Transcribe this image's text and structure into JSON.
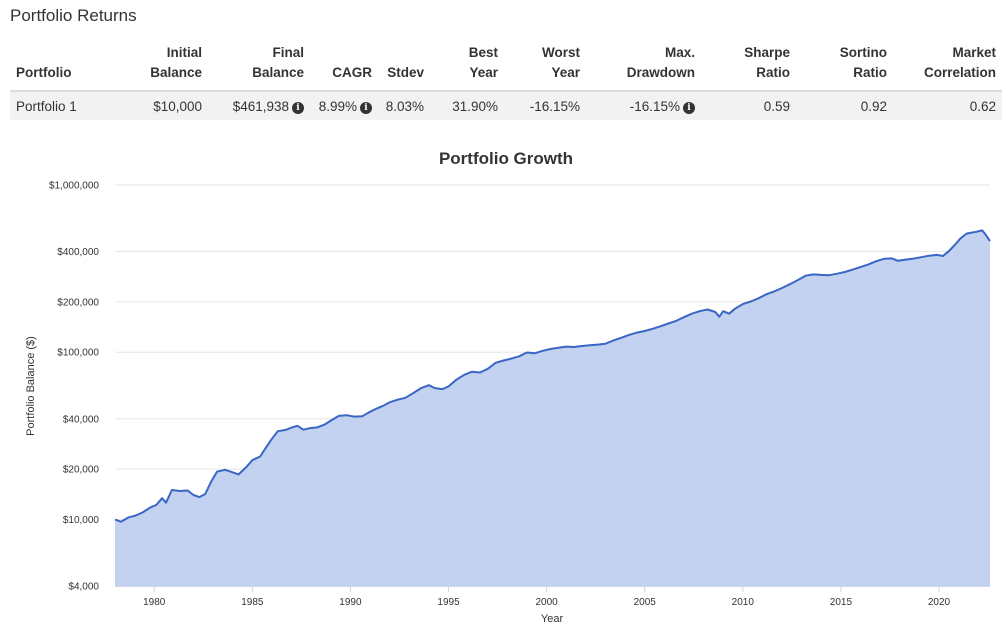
{
  "header": {
    "title": "Portfolio Returns"
  },
  "table": {
    "columns": [
      {
        "line1": "",
        "line2": "Portfolio"
      },
      {
        "line1": "Initial",
        "line2": "Balance"
      },
      {
        "line1": "Final",
        "line2": "Balance"
      },
      {
        "line1": "",
        "line2": "CAGR"
      },
      {
        "line1": "",
        "line2": "Stdev"
      },
      {
        "line1": "Best",
        "line2": "Year"
      },
      {
        "line1": "Worst",
        "line2": "Year"
      },
      {
        "line1": "Max.",
        "line2": "Drawdown"
      },
      {
        "line1": "Sharpe",
        "line2": "Ratio"
      },
      {
        "line1": "Sortino",
        "line2": "Ratio"
      },
      {
        "line1": "Market",
        "line2": "Correlation"
      }
    ],
    "row": {
      "portfolio": "Portfolio 1",
      "initial_balance": "$10,000",
      "final_balance": "$461,938",
      "cagr": "8.99%",
      "stdev": "8.03%",
      "best_year": "31.90%",
      "worst_year": "-16.15%",
      "max_drawdown": "-16.15%",
      "sharpe": "0.59",
      "sortino": "0.92",
      "market_correlation": "0.62"
    },
    "info_icon": "i"
  },
  "chart_data": {
    "type": "area",
    "title": "Portfolio Growth",
    "xlabel": "Year",
    "ylabel": "Portfolio Balance ($)",
    "yscale": "log",
    "ylim": [
      4000,
      1000000
    ],
    "xlim": [
      1978,
      2022.6
    ],
    "yticks": [
      {
        "value": 1000000,
        "label": "$1,000,000"
      },
      {
        "value": 400000,
        "label": "$400,000"
      },
      {
        "value": 200000,
        "label": "$200,000"
      },
      {
        "value": 100000,
        "label": "$100,000"
      },
      {
        "value": 40000,
        "label": "$40,000"
      },
      {
        "value": 20000,
        "label": "$20,000"
      },
      {
        "value": 10000,
        "label": "$10,000"
      },
      {
        "value": 4000,
        "label": "$4,000"
      }
    ],
    "xticks": [
      1980,
      1985,
      1990,
      1995,
      2000,
      2005,
      2010,
      2015,
      2020
    ],
    "colors": {
      "line": "#3a66c4",
      "fill": "#c2d2f0",
      "grid": "#e6e6e6"
    },
    "series": [
      {
        "name": "Portfolio 1",
        "points": [
          [
            1978.0,
            10000
          ],
          [
            1978.3,
            9700
          ],
          [
            1978.7,
            10300
          ],
          [
            1979.0,
            10500
          ],
          [
            1979.4,
            11000
          ],
          [
            1979.8,
            11800
          ],
          [
            1980.1,
            12200
          ],
          [
            1980.4,
            13400
          ],
          [
            1980.6,
            12600
          ],
          [
            1980.9,
            15000
          ],
          [
            1981.3,
            14800
          ],
          [
            1981.7,
            14900
          ],
          [
            1982.0,
            14000
          ],
          [
            1982.3,
            13600
          ],
          [
            1982.6,
            14200
          ],
          [
            1982.9,
            16800
          ],
          [
            1983.2,
            19300
          ],
          [
            1983.6,
            19800
          ],
          [
            1983.9,
            19300
          ],
          [
            1984.3,
            18600
          ],
          [
            1984.7,
            20600
          ],
          [
            1985.0,
            22600
          ],
          [
            1985.4,
            23800
          ],
          [
            1985.7,
            27000
          ],
          [
            1986.0,
            30400
          ],
          [
            1986.3,
            33700
          ],
          [
            1986.7,
            34300
          ],
          [
            1987.0,
            35400
          ],
          [
            1987.3,
            36300
          ],
          [
            1987.6,
            34400
          ],
          [
            1987.9,
            35100
          ],
          [
            1988.3,
            35500
          ],
          [
            1988.7,
            37000
          ],
          [
            1989.0,
            39000
          ],
          [
            1989.4,
            41600
          ],
          [
            1989.8,
            42000
          ],
          [
            1990.2,
            41200
          ],
          [
            1990.6,
            41400
          ],
          [
            1990.9,
            43400
          ],
          [
            1991.3,
            45800
          ],
          [
            1991.7,
            48000
          ],
          [
            1992.0,
            50200
          ],
          [
            1992.4,
            52000
          ],
          [
            1992.8,
            53400
          ],
          [
            1993.2,
            57000
          ],
          [
            1993.6,
            61000
          ],
          [
            1994.0,
            63500
          ],
          [
            1994.3,
            61000
          ],
          [
            1994.7,
            60200
          ],
          [
            1995.0,
            62500
          ],
          [
            1995.4,
            68500
          ],
          [
            1995.8,
            73300
          ],
          [
            1996.2,
            76500
          ],
          [
            1996.6,
            75600
          ],
          [
            1997.0,
            79600
          ],
          [
            1997.4,
            86500
          ],
          [
            1997.8,
            89200
          ],
          [
            1998.2,
            91600
          ],
          [
            1998.6,
            94500
          ],
          [
            1999.0,
            99600
          ],
          [
            1999.4,
            98600
          ],
          [
            1999.8,
            102000
          ],
          [
            2000.2,
            104500
          ],
          [
            2000.6,
            106500
          ],
          [
            2001.0,
            108000
          ],
          [
            2001.4,
            107500
          ],
          [
            2001.8,
            109000
          ],
          [
            2002.2,
            110000
          ],
          [
            2002.6,
            111000
          ],
          [
            2003.0,
            112500
          ],
          [
            2003.4,
            117500
          ],
          [
            2003.8,
            122000
          ],
          [
            2004.2,
            127000
          ],
          [
            2004.6,
            131000
          ],
          [
            2005.0,
            134000
          ],
          [
            2005.4,
            138000
          ],
          [
            2005.8,
            143000
          ],
          [
            2006.2,
            148500
          ],
          [
            2006.6,
            154000
          ],
          [
            2007.0,
            162000
          ],
          [
            2007.4,
            170000
          ],
          [
            2007.8,
            176000
          ],
          [
            2008.2,
            180000
          ],
          [
            2008.6,
            174000
          ],
          [
            2008.8,
            163000
          ],
          [
            2009.0,
            176000
          ],
          [
            2009.3,
            170000
          ],
          [
            2009.6,
            182000
          ],
          [
            2010.0,
            194000
          ],
          [
            2010.4,
            201000
          ],
          [
            2010.8,
            210000
          ],
          [
            2011.2,
            222000
          ],
          [
            2011.6,
            231000
          ],
          [
            2012.0,
            242000
          ],
          [
            2012.4,
            255000
          ],
          [
            2012.8,
            270000
          ],
          [
            2013.2,
            287000
          ],
          [
            2013.6,
            292000
          ],
          [
            2014.0,
            290000
          ],
          [
            2014.4,
            289000
          ],
          [
            2014.8,
            295000
          ],
          [
            2015.2,
            302000
          ],
          [
            2015.6,
            312000
          ],
          [
            2016.0,
            323000
          ],
          [
            2016.4,
            335000
          ],
          [
            2016.8,
            350000
          ],
          [
            2017.2,
            362000
          ],
          [
            2017.6,
            364000
          ],
          [
            2017.9,
            352000
          ],
          [
            2018.3,
            358000
          ],
          [
            2018.7,
            363000
          ],
          [
            2019.1,
            370000
          ],
          [
            2019.5,
            378000
          ],
          [
            2019.9,
            382000
          ],
          [
            2020.2,
            376000
          ],
          [
            2020.5,
            402000
          ],
          [
            2020.8,
            438000
          ],
          [
            2021.1,
            480000
          ],
          [
            2021.4,
            512000
          ],
          [
            2021.7,
            520000
          ],
          [
            2021.9,
            525000
          ],
          [
            2022.2,
            535000
          ],
          [
            2022.4,
            500000
          ],
          [
            2022.6,
            461938
          ]
        ]
      }
    ]
  }
}
